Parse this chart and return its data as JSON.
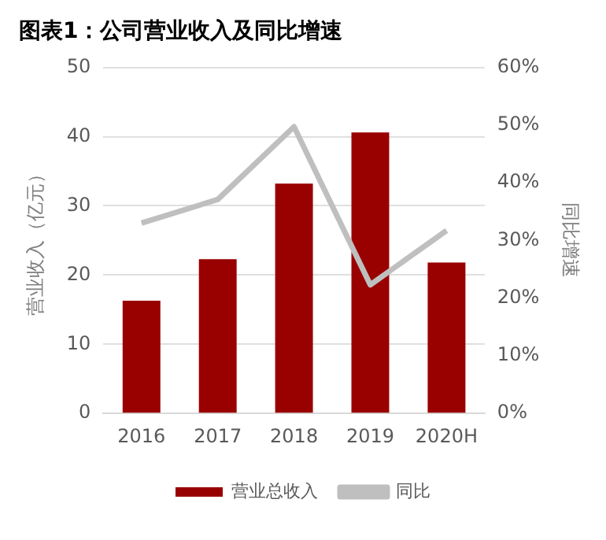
{
  "chart_data": {
    "type": "bar",
    "title": "图表1：公司营业收入及同比增速",
    "categories": [
      "2016",
      "2017",
      "2018",
      "2019",
      "2020H"
    ],
    "series": [
      {
        "name": "营业总收入",
        "color": "#990000",
        "values": [
          16.3,
          22.3,
          33.2,
          40.6,
          21.8
        ]
      },
      {
        "name": "同比",
        "type": "line",
        "axis": "y2",
        "color": "#bfbfbf",
        "values": [
          33.0,
          37.1,
          49.7,
          22.3,
          31.7
        ]
      }
    ],
    "ylabel": "营业收入（亿元）",
    "y2label": "同比增速",
    "ylim": [
      0,
      50
    ],
    "yticks": [
      0,
      10,
      20,
      30,
      40,
      50
    ],
    "y2lim": [
      0,
      60
    ],
    "y2ticks": [
      {
        "value": 0,
        "label": "0%"
      },
      {
        "value": 10,
        "label": "10%"
      },
      {
        "value": 20,
        "label": "20%"
      },
      {
        "value": 30,
        "label": "30%"
      },
      {
        "value": 40,
        "label": "40%"
      },
      {
        "value": 50,
        "label": "50%"
      },
      {
        "value": 60,
        "label": "60%"
      }
    ],
    "grid": "y",
    "legend": "bottom",
    "marker": "none"
  }
}
